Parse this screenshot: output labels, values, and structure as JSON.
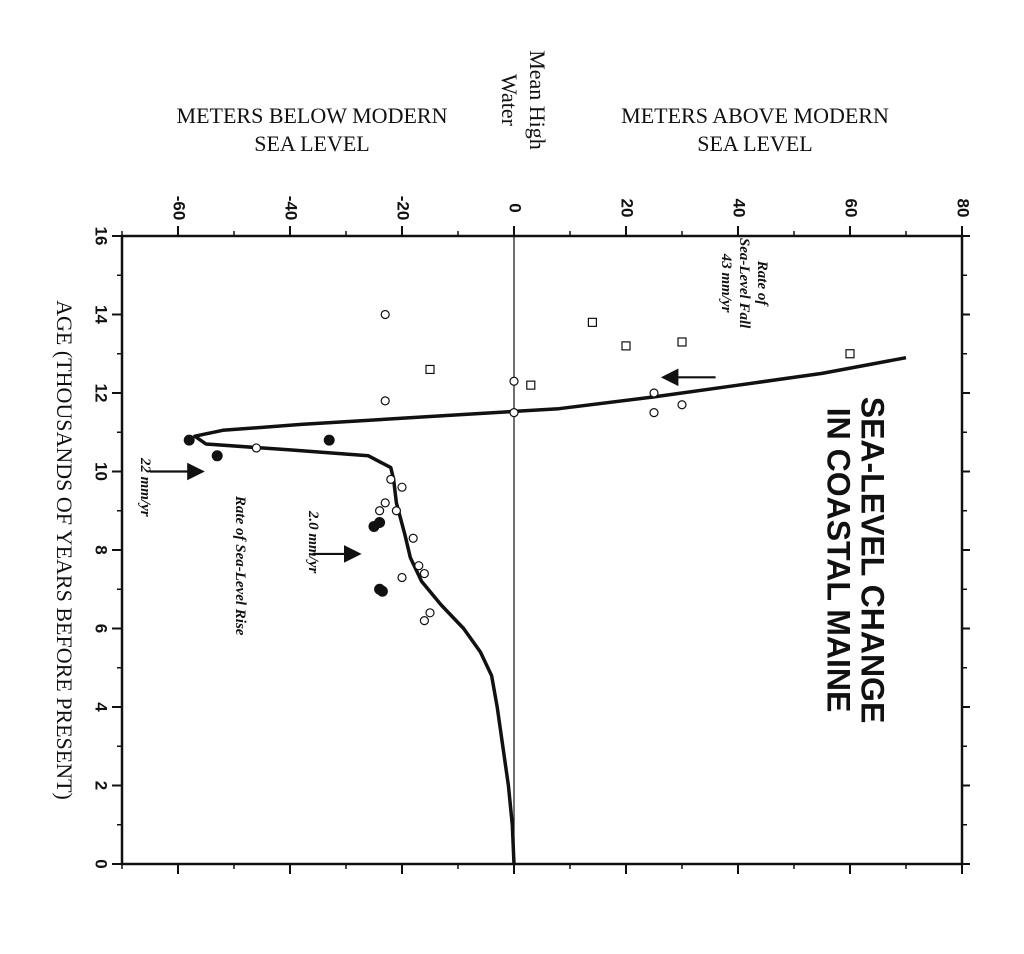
{
  "chart_data": {
    "type": "scatter",
    "title_lines": [
      "SEA-LEVEL CHANGE",
      "IN COASTAL MAINE"
    ],
    "xlabel": "AGE (THOUSANDS OF YEARS BEFORE PRESENT)",
    "ylabel_above_lines": [
      "METERS ABOVE MODERN",
      "SEA LEVEL"
    ],
    "ylabel_below_lines": [
      "METERS BELOW MODERN",
      "SEA LEVEL"
    ],
    "ylabel_zero_lines": [
      "Mean High",
      "Water"
    ],
    "xlim": [
      16,
      0
    ],
    "ylim": [
      -70,
      80
    ],
    "x_ticks": [
      16,
      14,
      12,
      10,
      8,
      6,
      4,
      2,
      0
    ],
    "y_ticks": [
      -60,
      -40,
      -20,
      0,
      20,
      40,
      60,
      80
    ],
    "zero_line": true,
    "orientation": "rotated-90-clockwise",
    "series": [
      {
        "marker": "square",
        "points": [
          {
            "x": 13.8,
            "y": 14
          },
          {
            "x": 13.2,
            "y": 20
          },
          {
            "x": 13.3,
            "y": 30
          },
          {
            "x": 13.0,
            "y": 60
          },
          {
            "x": 12.6,
            "y": -15
          },
          {
            "x": 12.2,
            "y": 3
          }
        ]
      },
      {
        "marker": "open-circle",
        "points": [
          {
            "x": 14.0,
            "y": -23
          },
          {
            "x": 12.3,
            "y": 0
          },
          {
            "x": 11.5,
            "y": 0
          },
          {
            "x": 11.8,
            "y": -23
          },
          {
            "x": 12.0,
            "y": 25
          },
          {
            "x": 11.5,
            "y": 25
          },
          {
            "x": 11.7,
            "y": 30
          },
          {
            "x": 10.6,
            "y": -46
          },
          {
            "x": 9.8,
            "y": -22
          },
          {
            "x": 9.6,
            "y": -20
          },
          {
            "x": 9.2,
            "y": -23
          },
          {
            "x": 9.0,
            "y": -21
          },
          {
            "x": 9.0,
            "y": -24
          },
          {
            "x": 8.3,
            "y": -18
          },
          {
            "x": 7.6,
            "y": -17
          },
          {
            "x": 7.4,
            "y": -16
          },
          {
            "x": 7.3,
            "y": -20
          },
          {
            "x": 6.4,
            "y": -15
          },
          {
            "x": 6.2,
            "y": -16
          }
        ]
      },
      {
        "marker": "filled-circle",
        "points": [
          {
            "x": 10.8,
            "y": -58
          },
          {
            "x": 10.8,
            "y": -33
          },
          {
            "x": 10.4,
            "y": -53
          },
          {
            "x": 8.7,
            "y": -24
          },
          {
            "x": 8.6,
            "y": -25
          },
          {
            "x": 7.0,
            "y": -24
          },
          {
            "x": 6.95,
            "y": -23.5
          }
        ]
      }
    ],
    "curve": [
      {
        "x": 12.9,
        "y": 70
      },
      {
        "x": 12.5,
        "y": 55
      },
      {
        "x": 12.2,
        "y": 40
      },
      {
        "x": 11.9,
        "y": 25
      },
      {
        "x": 11.6,
        "y": 8
      },
      {
        "x": 11.4,
        "y": -15
      },
      {
        "x": 11.2,
        "y": -38
      },
      {
        "x": 11.05,
        "y": -52
      },
      {
        "x": 10.9,
        "y": -57
      },
      {
        "x": 10.7,
        "y": -55
      },
      {
        "x": 10.55,
        "y": -40
      },
      {
        "x": 10.4,
        "y": -26
      },
      {
        "x": 10.1,
        "y": -22
      },
      {
        "x": 9.8,
        "y": -21.5
      },
      {
        "x": 9.2,
        "y": -21
      },
      {
        "x": 8.4,
        "y": -19.5
      },
      {
        "x": 7.8,
        "y": -18.5
      },
      {
        "x": 7.2,
        "y": -16.5
      },
      {
        "x": 6.6,
        "y": -13
      },
      {
        "x": 6.0,
        "y": -9
      },
      {
        "x": 5.4,
        "y": -6
      },
      {
        "x": 4.8,
        "y": -4
      },
      {
        "x": 4.0,
        "y": -3
      },
      {
        "x": 3.0,
        "y": -2
      },
      {
        "x": 2.0,
        "y": -1
      },
      {
        "x": 1.0,
        "y": -0.3
      },
      {
        "x": 0,
        "y": 0
      }
    ],
    "annotations": [
      {
        "lines": [
          "Rate of",
          "Sea-Level Fall",
          "43 mm/yr"
        ],
        "x": 14.8,
        "y": 41
      },
      {
        "lines": [
          "Rate of Sea-Level Rise"
        ],
        "x": 7.6,
        "y": -49
      },
      {
        "lines": [
          "2.0 mm/yr"
        ],
        "x": 8.2,
        "y": -36
      },
      {
        "lines": [
          "22 mm/yr"
        ],
        "x": 9.6,
        "y": -66
      }
    ],
    "arrows": [
      {
        "name": "fall-arrow",
        "from": {
          "x": 12.4,
          "y": 36
        },
        "to": {
          "x": 12.4,
          "y": 27
        }
      },
      {
        "name": "rise-arrow-2",
        "from": {
          "x": 7.9,
          "y": -36
        },
        "to": {
          "x": 7.9,
          "y": -28
        }
      },
      {
        "name": "rise-arrow-22",
        "from": {
          "x": 10.0,
          "y": -65
        },
        "to": {
          "x": 10.0,
          "y": -56
        }
      }
    ]
  }
}
